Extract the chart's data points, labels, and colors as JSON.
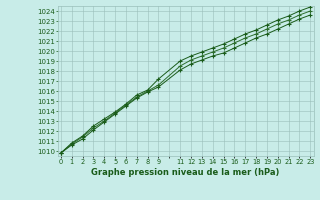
{
  "xlabel": "Graphe pression niveau de la mer (hPa)",
  "hours": [
    0,
    1,
    2,
    3,
    4,
    5,
    6,
    7,
    8,
    9,
    11,
    12,
    13,
    14,
    15,
    16,
    17,
    18,
    19,
    20,
    21,
    22,
    23
  ],
  "line_upper": [
    1009.8,
    1010.8,
    1011.5,
    1012.5,
    1013.2,
    1013.9,
    1014.7,
    1015.6,
    1016.1,
    1017.2,
    1019.0,
    1019.5,
    1019.9,
    1020.3,
    1020.7,
    1021.2,
    1021.7,
    1022.1,
    1022.6,
    1023.1,
    1023.5,
    1024.0,
    1024.4
  ],
  "line_lower": [
    1009.8,
    1010.6,
    1011.2,
    1012.1,
    1012.9,
    1013.7,
    1014.5,
    1015.3,
    1015.9,
    1016.4,
    1018.1,
    1018.7,
    1019.1,
    1019.5,
    1019.8,
    1020.3,
    1020.8,
    1021.3,
    1021.7,
    1022.2,
    1022.7,
    1023.2,
    1023.6
  ],
  "line_mid": [
    1009.8,
    1010.7,
    1011.4,
    1012.3,
    1013.0,
    1013.8,
    1014.6,
    1015.4,
    1016.0,
    1016.6,
    1018.5,
    1019.1,
    1019.5,
    1019.9,
    1020.3,
    1020.8,
    1021.3,
    1021.7,
    1022.2,
    1022.7,
    1023.1,
    1023.6,
    1024.0
  ],
  "all_hours": [
    0,
    1,
    2,
    3,
    4,
    5,
    6,
    7,
    8,
    9,
    10,
    11,
    12,
    13,
    14,
    15,
    16,
    17,
    18,
    19,
    20,
    21,
    22,
    23
  ],
  "line_color_dark": "#1a5c1a",
  "line_color_mid": "#2d6e2d",
  "bg_color": "#c8ece8",
  "grid_color": "#9abfba",
  "text_color": "#1a5c1a",
  "ylim_min": 1009.5,
  "ylim_max": 1024.5,
  "yticks": [
    1010,
    1011,
    1012,
    1013,
    1014,
    1015,
    1016,
    1017,
    1018,
    1019,
    1020,
    1021,
    1022,
    1023,
    1024
  ],
  "xtick_labels": [
    "0",
    "1",
    "2",
    "3",
    "4",
    "5",
    "6",
    "7",
    "8",
    "9",
    "",
    "11",
    "12",
    "13",
    "14",
    "15",
    "16",
    "17",
    "18",
    "19",
    "20",
    "21",
    "22",
    "23"
  ]
}
